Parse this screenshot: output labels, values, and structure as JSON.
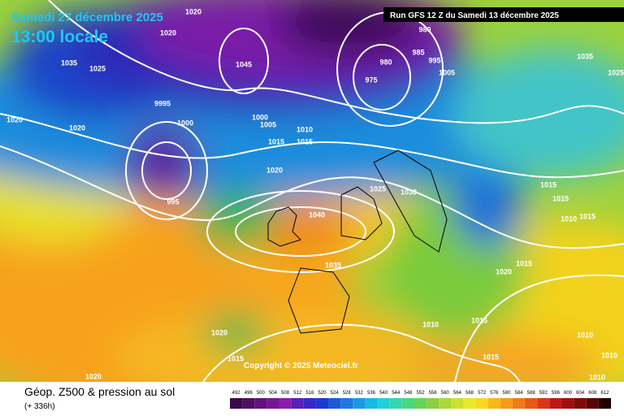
{
  "header": {
    "date": "Samedi 27 décembre 2025",
    "time": "13:00 locale",
    "run": "Run GFS 12 Z du Samedi 13 décembre 2025"
  },
  "map": {
    "copyright": "Copyright © 2025 Meteociel.fr",
    "isobar_labels": [
      "1020",
      "1020",
      "1035",
      "1025",
      "1045",
      "980",
      "980",
      "985",
      "995",
      "1005",
      "975",
      "1035",
      "9995",
      "1000",
      "1020",
      "1020",
      "1000",
      "1005",
      "1010",
      "1015",
      "1015",
      "1020",
      "1025",
      "1030",
      "1040",
      "1035",
      "1015",
      "1015",
      "1010",
      "1015",
      "1020",
      "1015",
      "1010",
      "1015",
      "1020",
      "1015",
      "1015",
      "1010",
      "1010",
      "1020",
      "1010",
      "995",
      "1025"
    ]
  },
  "legend": {
    "title": "Géop. Z500 & pression au sol",
    "lead": "(+ 336h)",
    "scale": [
      492,
      496,
      500,
      504,
      508,
      512,
      516,
      520,
      524,
      528,
      532,
      536,
      540,
      544,
      548,
      552,
      556,
      560,
      564,
      568,
      572,
      576,
      580,
      584,
      588,
      592,
      596,
      600,
      604,
      608,
      612
    ]
  }
}
